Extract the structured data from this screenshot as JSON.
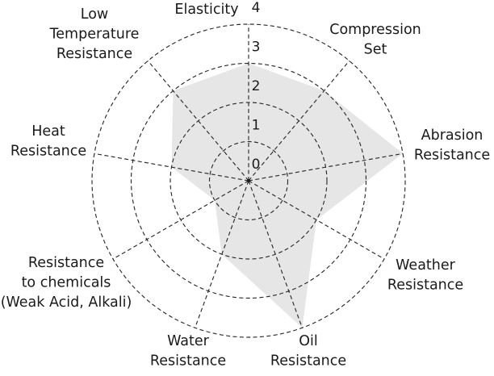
{
  "chart_data": {
    "type": "radar",
    "title": "",
    "axes": [
      {
        "label": [
          "Elasticity"
        ]
      },
      {
        "label": [
          "Compression",
          "Set"
        ]
      },
      {
        "label": [
          "Abrasion",
          "Resistance"
        ]
      },
      {
        "label": [
          "Weather",
          "Resistance"
        ]
      },
      {
        "label": [
          "Oil",
          "Resistance"
        ]
      },
      {
        "label": [
          "Water",
          "Resistance"
        ]
      },
      {
        "label": [
          "Resistance",
          "to chemicals",
          "(Weak Acid, Alkali)"
        ]
      },
      {
        "label": [
          "Heat",
          "Resistance"
        ]
      },
      {
        "label": [
          "Low",
          "Temperature",
          "Resistance"
        ]
      }
    ],
    "series": [
      {
        "values": [
          3,
          3,
          4,
          2,
          4,
          2,
          1,
          2,
          3
        ]
      }
    ],
    "ticks": [
      "0",
      "1",
      "2",
      "3",
      "4"
    ],
    "range": [
      0,
      4
    ],
    "fill_color": "#e6e6e6",
    "line_color": "#2b2b2b",
    "grid": "dashed"
  }
}
